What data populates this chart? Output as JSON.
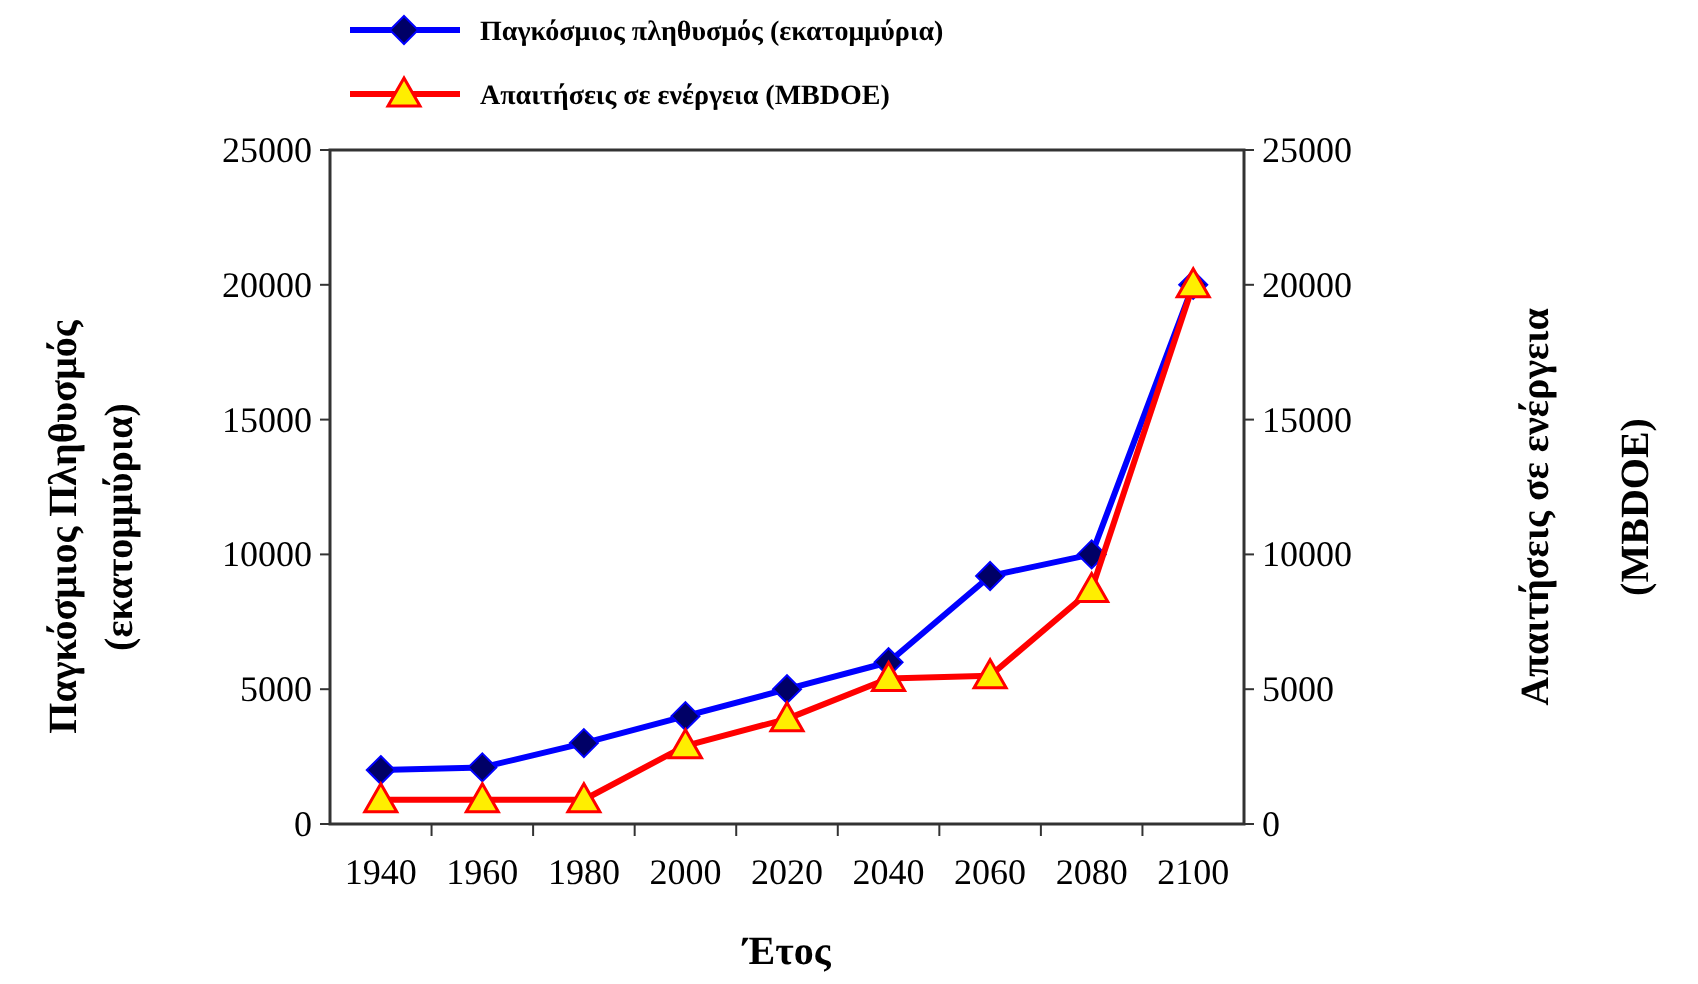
{
  "chart_data": {
    "type": "line",
    "xlabel": "Έτος",
    "ylabel": "Παγκόσμιος Πληθυσμός (εκατομμύρια)",
    "y2label": "Απαιτήσεις σε ενέργεια (MBDOE)",
    "categories": [
      "1940",
      "1960",
      "1980",
      "2000",
      "2020",
      "2040",
      "2060",
      "2080",
      "2100"
    ],
    "series": [
      {
        "name": "Παγκόσμιος πληθυσμός (εκατομμύρια)",
        "color": "#0000ff",
        "marker": "diamond",
        "values": [
          2000,
          2100,
          3000,
          4000,
          5000,
          6000,
          9200,
          10000,
          20000
        ]
      },
      {
        "name": "Απαιτήσεις σε ενέργεια (MBDOE)",
        "color": "#ff0000",
        "marker": "triangle",
        "values": [
          900,
          900,
          900,
          2900,
          3900,
          5400,
          5500,
          8700,
          20000
        ]
      }
    ],
    "ylim": [
      0,
      25000
    ],
    "yticks": [
      0,
      5000,
      10000,
      15000,
      20000,
      25000
    ],
    "y2lim": [
      0,
      25000
    ],
    "y2ticks": [
      0,
      5000,
      10000,
      15000,
      20000,
      25000
    ],
    "legend": "top",
    "grid": false
  }
}
